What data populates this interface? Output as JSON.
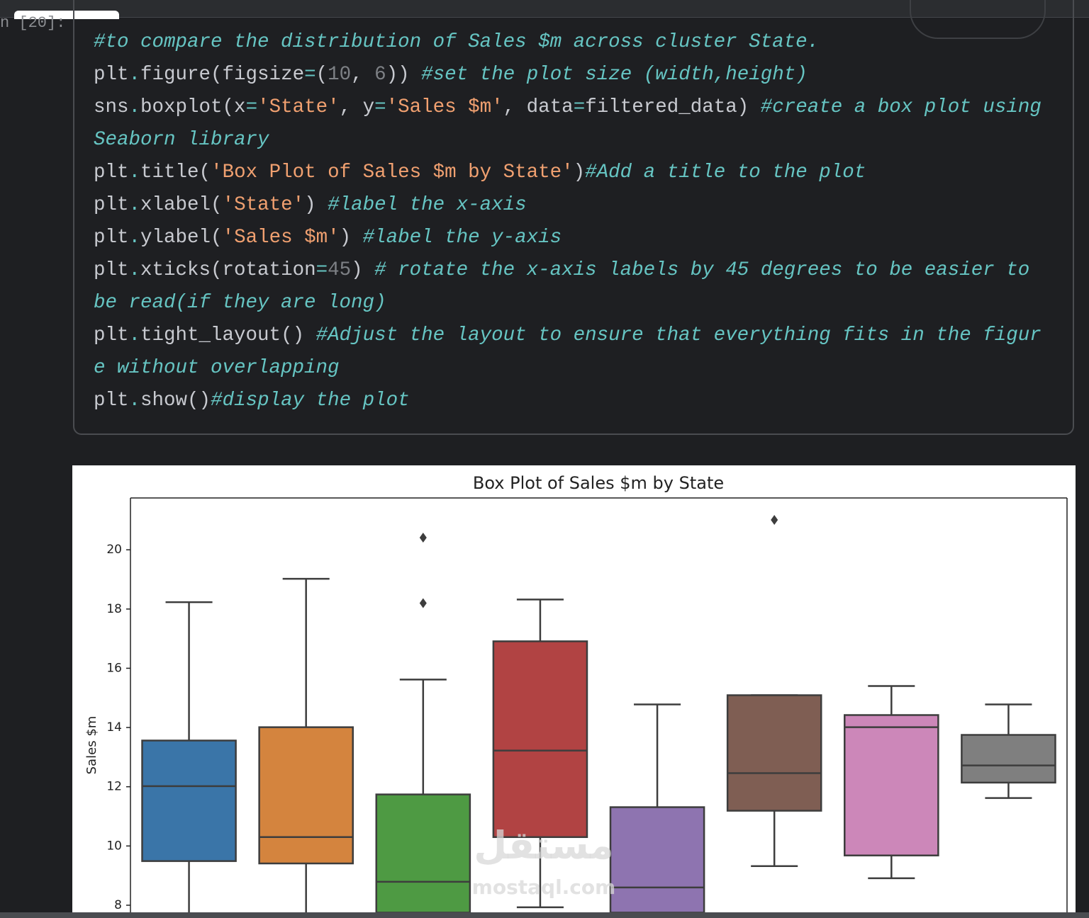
{
  "code": {
    "prompt": "n [20]:",
    "lines": [
      [
        {
          "text": "#to compare the distribution of Sales $m across cluster State.",
          "kind": "comment"
        }
      ],
      [
        {
          "text": "plt",
          "kind": "plain"
        },
        {
          "text": ".",
          "kind": "op"
        },
        {
          "text": "figure(figsize",
          "kind": "plain"
        },
        {
          "text": "=",
          "kind": "op"
        },
        {
          "text": "(",
          "kind": "plain"
        },
        {
          "text": "10",
          "kind": "number"
        },
        {
          "text": ", ",
          "kind": "plain"
        },
        {
          "text": "6",
          "kind": "number"
        },
        {
          "text": ")) ",
          "kind": "plain"
        },
        {
          "text": "#set the plot size (width,height)",
          "kind": "comment"
        }
      ],
      [
        {
          "text": "sns",
          "kind": "plain"
        },
        {
          "text": ".",
          "kind": "op"
        },
        {
          "text": "boxplot(x",
          "kind": "plain"
        },
        {
          "text": "=",
          "kind": "op"
        },
        {
          "text": "'State'",
          "kind": "string"
        },
        {
          "text": ", y",
          "kind": "plain"
        },
        {
          "text": "=",
          "kind": "op"
        },
        {
          "text": "'Sales $m'",
          "kind": "string"
        },
        {
          "text": ", data",
          "kind": "plain"
        },
        {
          "text": "=",
          "kind": "op"
        },
        {
          "text": "filtered_data) ",
          "kind": "plain"
        },
        {
          "text": "#create a box plot using Seaborn library",
          "kind": "comment"
        }
      ],
      [
        {
          "text": "plt",
          "kind": "plain"
        },
        {
          "text": ".",
          "kind": "op"
        },
        {
          "text": "title(",
          "kind": "plain"
        },
        {
          "text": "'Box Plot of Sales $m by State'",
          "kind": "string"
        },
        {
          "text": ")",
          "kind": "plain"
        },
        {
          "text": "#Add a title to the plot",
          "kind": "comment"
        }
      ],
      [
        {
          "text": "plt",
          "kind": "plain"
        },
        {
          "text": ".",
          "kind": "op"
        },
        {
          "text": "xlabel(",
          "kind": "plain"
        },
        {
          "text": "'State'",
          "kind": "string"
        },
        {
          "text": ") ",
          "kind": "plain"
        },
        {
          "text": "#label the x-axis",
          "kind": "comment"
        }
      ],
      [
        {
          "text": "plt",
          "kind": "plain"
        },
        {
          "text": ".",
          "kind": "op"
        },
        {
          "text": "ylabel(",
          "kind": "plain"
        },
        {
          "text": "'Sales $m'",
          "kind": "string"
        },
        {
          "text": ") ",
          "kind": "plain"
        },
        {
          "text": "#label the y-axis",
          "kind": "comment"
        }
      ],
      [
        {
          "text": "plt",
          "kind": "plain"
        },
        {
          "text": ".",
          "kind": "op"
        },
        {
          "text": "xticks(rotation",
          "kind": "plain"
        },
        {
          "text": "=",
          "kind": "op"
        },
        {
          "text": "45",
          "kind": "number"
        },
        {
          "text": ") ",
          "kind": "plain"
        },
        {
          "text": "# rotate the x-axis labels by 45 degrees to be easier to be read(if they are long)",
          "kind": "comment"
        }
      ],
      [
        {
          "text": "plt",
          "kind": "plain"
        },
        {
          "text": ".",
          "kind": "op"
        },
        {
          "text": "tight_layout() ",
          "kind": "plain"
        },
        {
          "text": "#Adjust the layout to ensure that everything fits in the figure without overlapping",
          "kind": "comment"
        }
      ],
      [
        {
          "text": "plt",
          "kind": "plain"
        },
        {
          "text": ".",
          "kind": "op"
        },
        {
          "text": "show()",
          "kind": "plain"
        },
        {
          "text": "#display the plot",
          "kind": "comment"
        }
      ]
    ]
  },
  "chart_data": {
    "type": "box",
    "title": "Box Plot of Sales $m by State",
    "ylabel": "Sales $m",
    "categories": [
      null,
      null,
      null,
      null,
      null,
      null,
      null,
      null
    ],
    "colors": [
      "#3a75a8",
      "#d4843e",
      "#4e9a43",
      "#b14343",
      "#8e74b0",
      "#7f5e53",
      "#cc87b9",
      "#7f7f7f"
    ],
    "whishi": [
      18.23,
      19.02,
      15.62,
      18.32,
      14.78,
      15.09,
      15.4,
      14.78
    ],
    "q3": [
      13.56,
      14.01,
      11.74,
      16.91,
      11.31,
      15.09,
      14.42,
      13.75
    ],
    "median": [
      12.02,
      10.3,
      8.79,
      13.22,
      8.6,
      12.46,
      14.01,
      12.72
    ],
    "q1": [
      9.49,
      9.41,
      null,
      10.3,
      null,
      11.19,
      9.68,
      12.14
    ],
    "whislo": [
      null,
      null,
      null,
      7.93,
      null,
      9.32,
      8.91,
      11.62
    ],
    "fliers": [
      [],
      [],
      [
        20.41,
        18.2
      ],
      [],
      [],
      [
        21.01
      ],
      [],
      []
    ],
    "ylim": [
      7.75,
      21.75
    ],
    "yticks": [
      8,
      10,
      12,
      14,
      16,
      18,
      20
    ]
  },
  "watermark": {
    "arabic": "مستقل",
    "latin": "mostaql.com"
  }
}
